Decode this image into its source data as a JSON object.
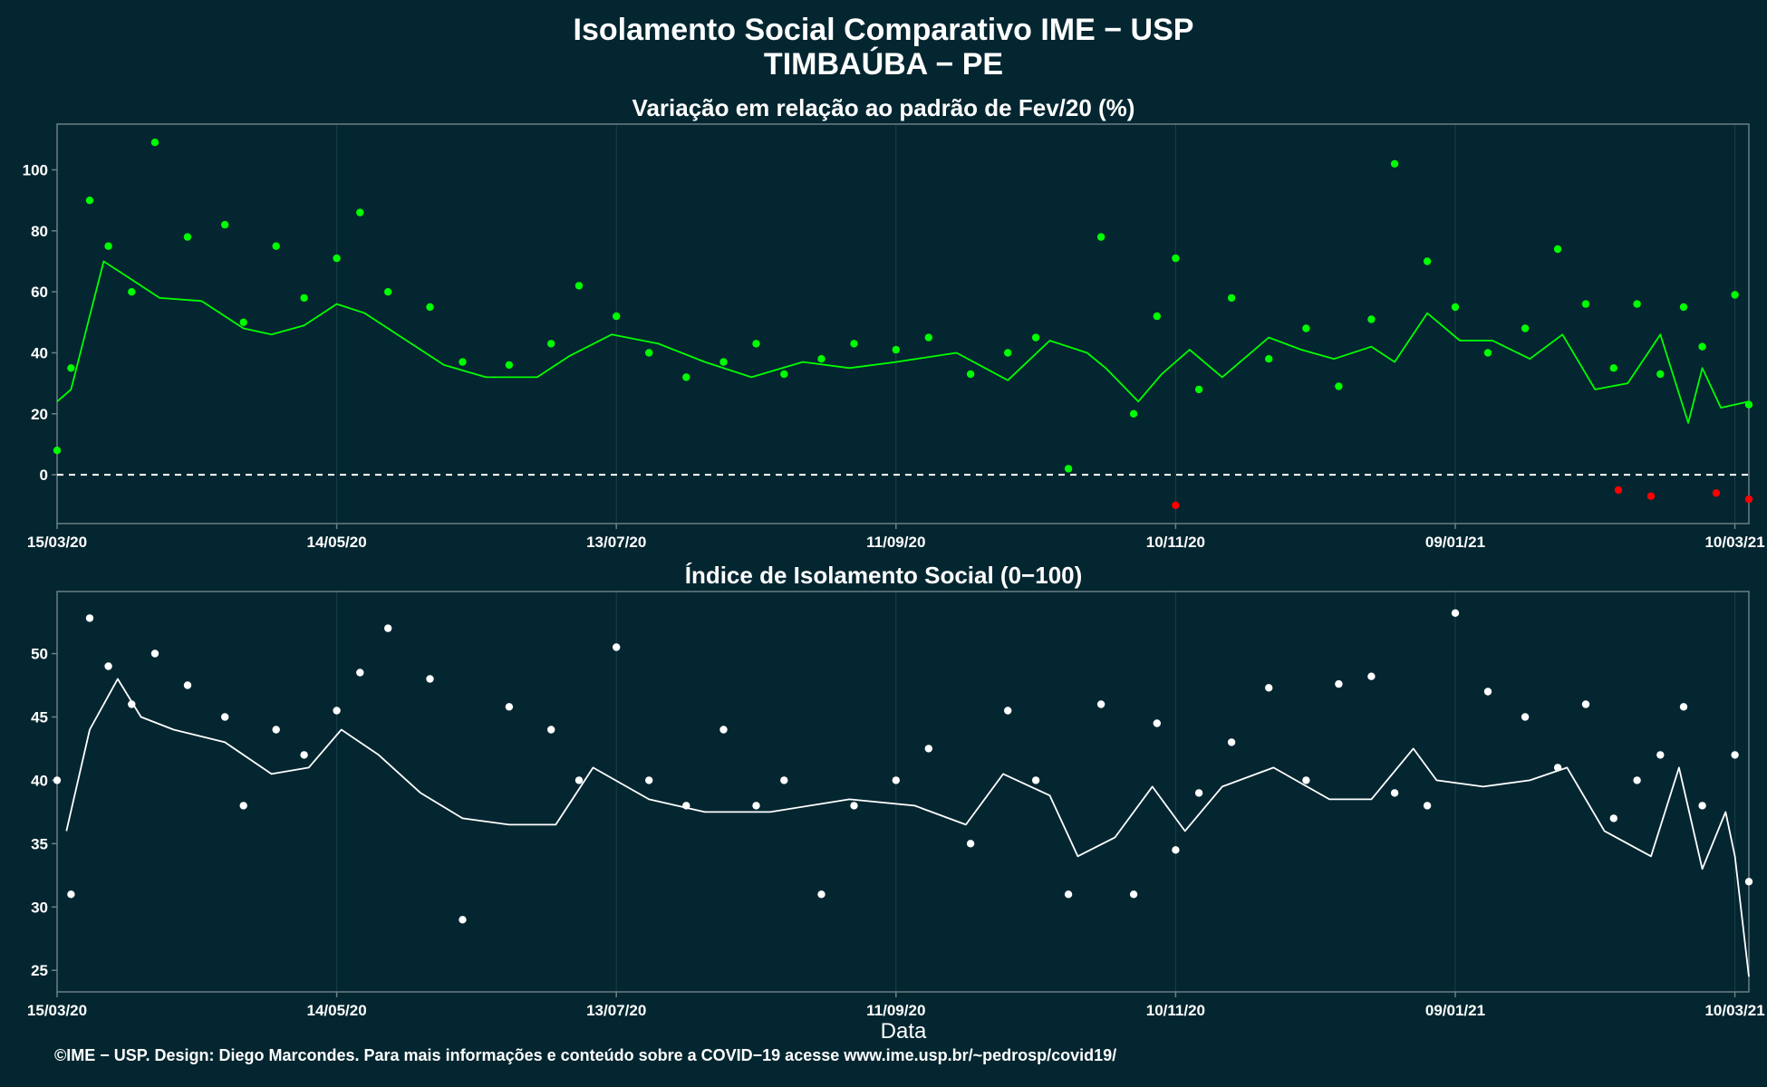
{
  "header": {
    "title": "Isolamento Social Comparativo IME − USP",
    "location": "TIMBAÚBA − PE"
  },
  "footer": "©IME − USP. Design: Diego Marcondes. Para mais informações e conteúdo sobre a COVID−19 acesse www.ime.usp.br/~pedrosp/covid19/",
  "colors": {
    "background": "#042630",
    "panel_border": "#6b7f85",
    "grid": "#1b3f48",
    "top_points": "#00ff00",
    "top_line": "#00ff00",
    "negative": "#ff0000",
    "bottom_points": "#ffffff",
    "bottom_line": "#ffffff"
  },
  "chart_data": [
    {
      "type": "scatter",
      "title": "Variação em relação ao padrão de Fev/20 (%)",
      "xlabel": "",
      "ylabel": "",
      "x_tick_labels": [
        "15/03/20",
        "14/05/20",
        "13/07/20",
        "11/09/20",
        "10/11/20",
        "09/01/21",
        "10/03/21"
      ],
      "y_ticks": [
        0,
        20,
        40,
        60,
        80,
        100
      ],
      "ylim": [
        -16,
        115
      ],
      "reference_line": 0,
      "series": [
        {
          "kind": "points",
          "x": [
            "15/03/20",
            "18/03/20",
            "22/03/20",
            "26/03/20",
            "31/03/20",
            "05/04/20",
            "12/04/20",
            "20/04/20",
            "24/04/20",
            "01/05/20",
            "07/05/20",
            "14/05/20",
            "19/05/20",
            "25/05/20",
            "03/06/20",
            "10/06/20",
            "20/06/20",
            "29/06/20",
            "05/07/20",
            "13/07/20",
            "20/07/20",
            "28/07/20",
            "05/08/20",
            "12/08/20",
            "18/08/20",
            "26/08/20",
            "02/09/20",
            "11/09/20",
            "18/09/20",
            "27/09/20",
            "05/10/20",
            "11/10/20",
            "18/10/20",
            "25/10/20",
            "01/11/20",
            "06/11/20",
            "10/11/20",
            "15/11/20",
            "22/11/20",
            "30/11/20",
            "08/12/20",
            "15/12/20",
            "22/12/20",
            "27/12/20",
            "03/01/21",
            "09/01/21",
            "16/01/21",
            "24/01/21",
            "31/01/21",
            "06/02/21",
            "12/02/21",
            "17/02/21",
            "22/02/21",
            "27/02/21",
            "03/03/21",
            "10/03/21",
            "13/03/21"
          ],
          "y": [
            8,
            35,
            90,
            75,
            60,
            109,
            78,
            82,
            50,
            75,
            58,
            71,
            86,
            60,
            55,
            37,
            36,
            43,
            62,
            52,
            40,
            32,
            37,
            43,
            33,
            38,
            43,
            41,
            45,
            33,
            40,
            45,
            2,
            78,
            20,
            52,
            71,
            28,
            58,
            38,
            48,
            29,
            51,
            102,
            70,
            55,
            40,
            48,
            74,
            56,
            35,
            56,
            33,
            55,
            42,
            59,
            23
          ]
        },
        {
          "kind": "points-negative",
          "x": [
            "10/11/20",
            "13/02/21",
            "20/02/21",
            "06/03/21",
            "13/03/21"
          ],
          "y": [
            -10,
            -5,
            -7,
            -6,
            -8
          ]
        },
        {
          "kind": "moving-average",
          "x": [
            "15/03/20",
            "18/03/20",
            "25/03/20",
            "30/03/20",
            "06/04/20",
            "15/04/20",
            "24/04/20",
            "30/04/20",
            "07/05/20",
            "14/05/20",
            "20/05/20",
            "28/05/20",
            "06/06/20",
            "15/06/20",
            "26/06/20",
            "03/07/20",
            "12/07/20",
            "22/07/20",
            "01/08/20",
            "11/08/20",
            "22/08/20",
            "01/09/20",
            "11/09/20",
            "24/09/20",
            "05/10/20",
            "14/10/20",
            "22/10/20",
            "26/10/20",
            "02/11/20",
            "07/11/20",
            "13/11/20",
            "20/11/20",
            "30/11/20",
            "07/12/20",
            "14/12/20",
            "22/12/20",
            "27/12/20",
            "03/01/21",
            "10/01/21",
            "17/01/21",
            "25/01/21",
            "01/02/21",
            "08/02/21",
            "15/02/21",
            "22/02/21",
            "28/02/21",
            "03/03/21",
            "07/03/21",
            "13/03/21"
          ],
          "y": [
            24,
            28,
            70,
            65,
            58,
            57,
            48,
            46,
            49,
            56,
            53,
            45,
            36,
            32,
            32,
            39,
            46,
            43,
            37,
            32,
            37,
            35,
            37,
            40,
            31,
            44,
            40,
            35,
            24,
            33,
            41,
            32,
            45,
            41,
            38,
            42,
            37,
            53,
            44,
            44,
            38,
            46,
            28,
            30,
            46,
            17,
            35,
            22,
            24
          ]
        }
      ]
    },
    {
      "type": "scatter",
      "title": "Índice de Isolamento Social (0−100)",
      "xlabel": "Data",
      "ylabel": "",
      "x_tick_labels": [
        "15/03/20",
        "14/05/20",
        "13/07/20",
        "11/09/20",
        "10/11/20",
        "09/01/21",
        "10/03/21"
      ],
      "y_ticks": [
        25,
        30,
        35,
        40,
        45,
        50
      ],
      "ylim": [
        23.3,
        54.9
      ],
      "series": [
        {
          "kind": "points",
          "x": [
            "15/03/20",
            "18/03/20",
            "22/03/20",
            "26/03/20",
            "31/03/20",
            "05/04/20",
            "12/04/20",
            "20/04/20",
            "24/04/20",
            "01/05/20",
            "07/05/20",
            "14/05/20",
            "19/05/20",
            "25/05/20",
            "03/06/20",
            "10/06/20",
            "20/06/20",
            "29/06/20",
            "05/07/20",
            "13/07/20",
            "20/07/20",
            "28/07/20",
            "05/08/20",
            "12/08/20",
            "18/08/20",
            "26/08/20",
            "02/09/20",
            "11/09/20",
            "18/09/20",
            "27/09/20",
            "05/10/20",
            "11/10/20",
            "18/10/20",
            "25/10/20",
            "01/11/20",
            "06/11/20",
            "10/11/20",
            "15/11/20",
            "22/11/20",
            "30/11/20",
            "08/12/20",
            "15/12/20",
            "22/12/20",
            "27/12/20",
            "03/01/21",
            "09/01/21",
            "16/01/21",
            "24/01/21",
            "31/01/21",
            "06/02/21",
            "12/02/21",
            "17/02/21",
            "22/02/21",
            "27/02/21",
            "03/03/21",
            "10/03/21",
            "13/03/21"
          ],
          "y": [
            40,
            31,
            52.8,
            49,
            46,
            50,
            47.5,
            45,
            38,
            44,
            42,
            45.5,
            48.5,
            52,
            48,
            29,
            45.8,
            44,
            40,
            50.5,
            40,
            38,
            44,
            38,
            40,
            31,
            38,
            40,
            42.5,
            35,
            45.5,
            40,
            31,
            46,
            31,
            44.5,
            34.5,
            39,
            43,
            47.3,
            40,
            47.6,
            48.2,
            39,
            38,
            53.2,
            47,
            45,
            41,
            46,
            37,
            40,
            42,
            45.8,
            38,
            42,
            32
          ]
        },
        {
          "kind": "moving-average",
          "x": [
            "17/03/20",
            "22/03/20",
            "28/03/20",
            "02/04/20",
            "09/04/20",
            "20/04/20",
            "30/04/20",
            "08/05/20",
            "15/05/20",
            "23/05/20",
            "01/06/20",
            "10/06/20",
            "20/06/20",
            "30/06/20",
            "08/07/20",
            "20/07/20",
            "01/08/20",
            "15/08/20",
            "01/09/20",
            "15/09/20",
            "26/09/20",
            "04/10/20",
            "14/10/20",
            "20/10/20",
            "28/10/20",
            "05/11/20",
            "12/11/20",
            "20/11/20",
            "01/12/20",
            "13/12/20",
            "22/12/20",
            "31/12/20",
            "05/01/21",
            "15/01/21",
            "25/01/21",
            "02/02/21",
            "10/02/21",
            "20/02/21",
            "26/02/21",
            "03/03/21",
            "08/03/21",
            "10/03/21",
            "13/03/21"
          ],
          "y": [
            36,
            44,
            48,
            45,
            44,
            43,
            40.5,
            41,
            44,
            42,
            39,
            37,
            36.5,
            36.5,
            41,
            38.5,
            37.5,
            37.5,
            38.5,
            38,
            36.5,
            40.5,
            38.8,
            34,
            35.5,
            39.5,
            36,
            39.5,
            41,
            38.5,
            38.5,
            42.5,
            40,
            39.5,
            40,
            41,
            36,
            34,
            41,
            33,
            37.5,
            34,
            24.5
          ]
        }
      ]
    }
  ]
}
